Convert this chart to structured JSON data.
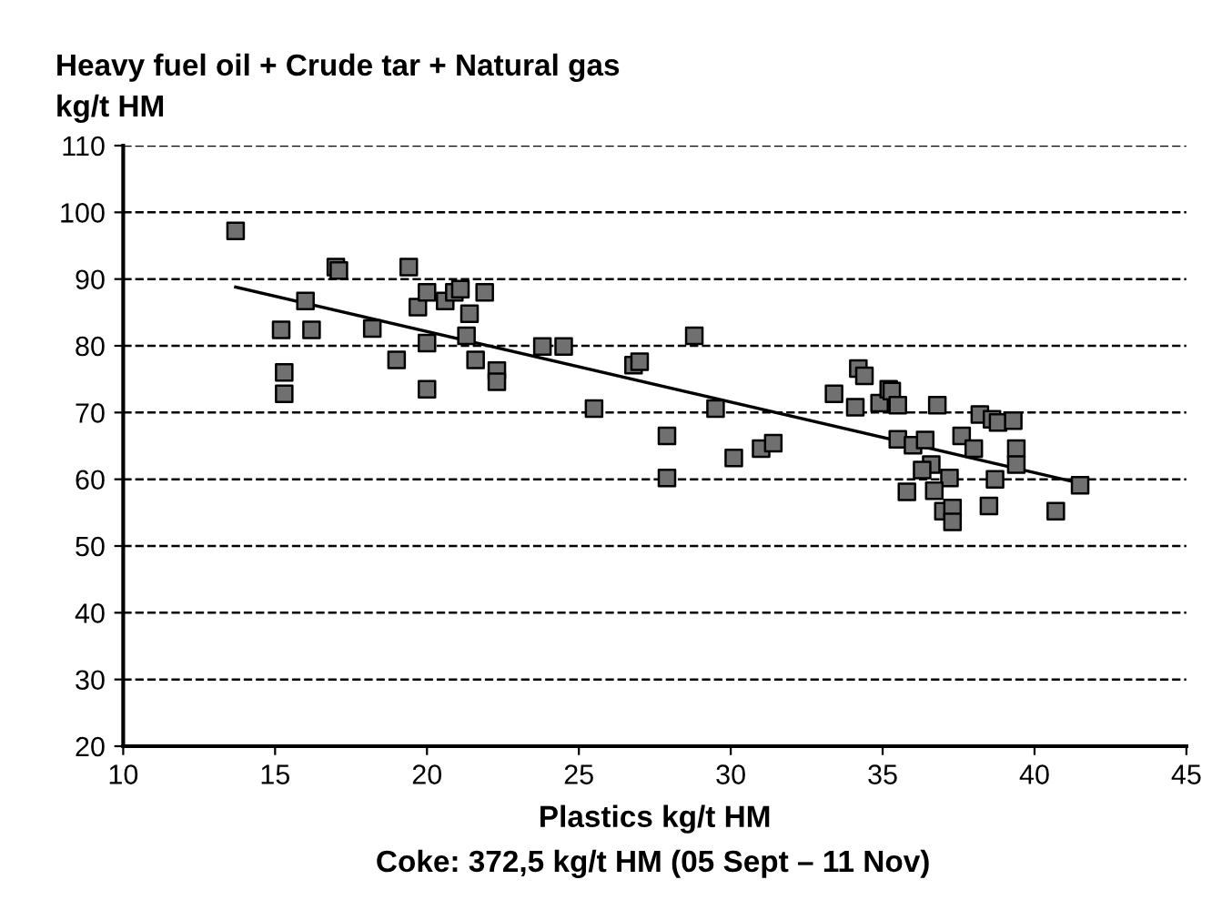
{
  "chart_data": {
    "type": "scatter",
    "title": "Heavy fuel oil + Crude tar + Natural gas",
    "ylabel": "kg/t HM",
    "xlabel": "Plastics kg/t HM",
    "annotations": [
      "Coke: 372,5 kg/t HM (05 Sept – 11 Nov)"
    ],
    "series": [
      {
        "color": "#707070",
        "marker": "square",
        "x": [
          13.7,
          15.2,
          15.3,
          15.3,
          16.0,
          16.2,
          17.0,
          17.1,
          18.2,
          19.0,
          19.4,
          19.7,
          20.0,
          20.0,
          20.0,
          20.6,
          20.9,
          21.1,
          21.3,
          21.4,
          21.6,
          21.9,
          22.3,
          22.3,
          23.8,
          24.5,
          25.5,
          26.8,
          27.0,
          27.9,
          27.9,
          28.8,
          29.5,
          30.1,
          31.0,
          31.4,
          33.4,
          34.2,
          34.4,
          34.1,
          34.9,
          35.2,
          35.3,
          35.5,
          36.8,
          35.5,
          36.0,
          36.4,
          37.6,
          38.0,
          38.2,
          38.6,
          38.8,
          39.3,
          39.4,
          39.4,
          38.7,
          36.6,
          36.3,
          37.2,
          35.8,
          36.7,
          37.0,
          37.3,
          37.3,
          38.5,
          40.7,
          41.5
        ],
        "values": [
          97.2,
          82.4,
          76.0,
          72.8,
          86.7,
          82.4,
          91.8,
          91.3,
          82.6,
          77.9,
          91.8,
          85.8,
          88.0,
          80.4,
          73.5,
          86.7,
          88.0,
          88.5,
          81.5,
          84.8,
          77.9,
          88.0,
          76.3,
          74.6,
          79.9,
          79.9,
          70.6,
          77.1,
          77.6,
          66.5,
          60.2,
          81.5,
          70.6,
          63.2,
          64.6,
          65.4,
          72.8,
          76.6,
          75.5,
          70.8,
          71.4,
          73.5,
          73.2,
          71.1,
          71.1,
          66.0,
          65.1,
          65.9,
          66.5,
          64.6,
          69.7,
          69.0,
          68.5,
          68.8,
          64.6,
          62.2,
          60.0,
          62.2,
          61.4,
          60.2,
          58.1,
          58.3,
          55.2,
          55.7,
          53.6,
          56.0,
          55.2,
          59.1
        ]
      },
      {
        "type": "line",
        "color": "#000000",
        "marker": "none",
        "line_style": "solid",
        "x": [
          13.7,
          41.5
        ],
        "values": [
          88.8,
          59.4
        ]
      }
    ],
    "xlim": [
      10,
      45
    ],
    "xticks": [
      10,
      15,
      20,
      25,
      30,
      35,
      40,
      45
    ],
    "ylim": [
      20,
      110
    ],
    "yticks": [
      20,
      30,
      40,
      50,
      60,
      70,
      80,
      90,
      100,
      110
    ],
    "grid": "y",
    "legend": false
  }
}
